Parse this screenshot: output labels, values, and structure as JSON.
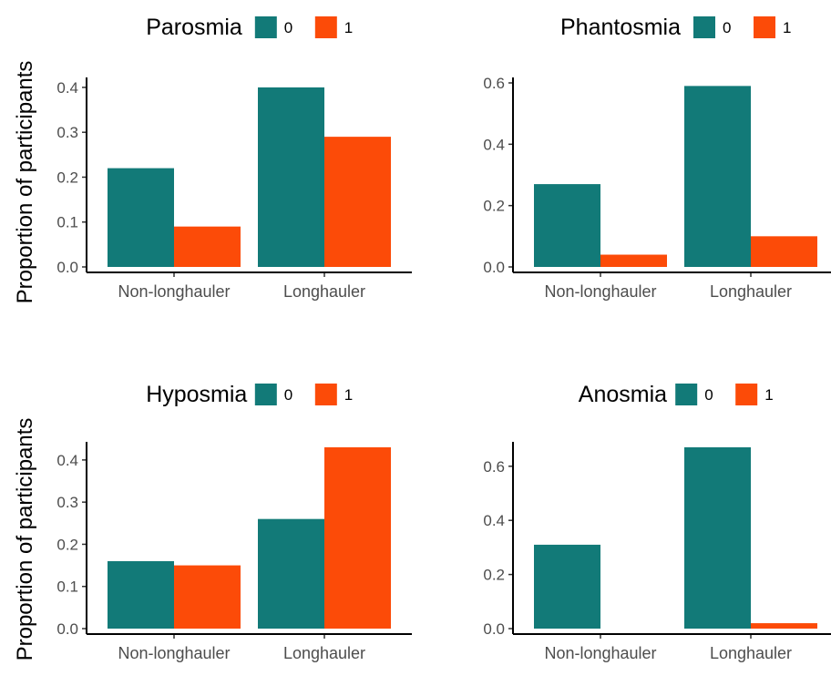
{
  "chart_data": [
    {
      "type": "bar",
      "legend_title": "Parosmia",
      "legend_entries": [
        "0",
        "1"
      ],
      "legend_position": "top",
      "categories": [
        "Non-longhauler",
        "Longhauler"
      ],
      "series": [
        {
          "name": "0",
          "values": [
            0.22,
            0.4
          ]
        },
        {
          "name": "1",
          "values": [
            0.09,
            0.29
          ]
        }
      ],
      "ylabel": "Proportion of participants",
      "ylim": [
        0,
        0.41
      ],
      "yticks": [
        0.0,
        0.1,
        0.2,
        0.3,
        0.4
      ],
      "ytick_labels": [
        "0.0",
        "0.1",
        "0.2",
        "0.3",
        "0.4"
      ],
      "grid": false
    },
    {
      "type": "bar",
      "legend_title": "Phantosmia",
      "legend_entries": [
        "0",
        "1"
      ],
      "legend_position": "top",
      "categories": [
        "Non-longhauler",
        "Longhauler"
      ],
      "series": [
        {
          "name": "0",
          "values": [
            0.27,
            0.59
          ]
        },
        {
          "name": "1",
          "values": [
            0.04,
            0.1
          ]
        }
      ],
      "ylabel": "",
      "ylim": [
        0,
        0.6
      ],
      "yticks": [
        0.0,
        0.2,
        0.4,
        0.6
      ],
      "ytick_labels": [
        "0.0",
        "0.2",
        "0.4",
        "0.6"
      ],
      "grid": false
    },
    {
      "type": "bar",
      "legend_title": "Hyposmia",
      "legend_entries": [
        "0",
        "1"
      ],
      "legend_position": "top",
      "categories": [
        "Non-longhauler",
        "Longhauler"
      ],
      "series": [
        {
          "name": "0",
          "values": [
            0.16,
            0.26
          ]
        },
        {
          "name": "1",
          "values": [
            0.15,
            0.43
          ]
        }
      ],
      "ylabel": "Proportion of participants",
      "ylim": [
        0,
        0.43
      ],
      "yticks": [
        0.0,
        0.1,
        0.2,
        0.3,
        0.4
      ],
      "ytick_labels": [
        "0.0",
        "0.1",
        "0.2",
        "0.3",
        "0.4"
      ],
      "grid": false
    },
    {
      "type": "bar",
      "legend_title": "Anosmia",
      "legend_entries": [
        "0",
        "1"
      ],
      "legend_position": "top",
      "categories": [
        "Non-longhauler",
        "Longhauler"
      ],
      "series": [
        {
          "name": "0",
          "values": [
            0.31,
            0.67
          ]
        },
        {
          "name": "1",
          "values": [
            0.0,
            0.02
          ]
        }
      ],
      "ylabel": "",
      "ylim": [
        0,
        0.67
      ],
      "yticks": [
        0.0,
        0.2,
        0.4,
        0.6
      ],
      "ytick_labels": [
        "0.0",
        "0.2",
        "0.4",
        "0.6"
      ],
      "grid": false
    }
  ],
  "colors": {
    "series_0": "#127a78",
    "series_1": "#fc4b08",
    "axis": "#000000",
    "tick_text": "#4d4d4d"
  }
}
